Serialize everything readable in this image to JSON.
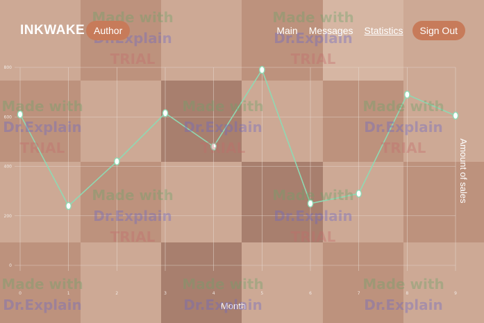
{
  "header": {
    "brand": "INKWAKE",
    "role_badge": "Author",
    "nav": [
      {
        "label": "Main"
      },
      {
        "label": "Messages"
      },
      {
        "label": "Statistics",
        "active": true
      }
    ],
    "signout_label": "Sign Out"
  },
  "watermark": [
    "Made with",
    "Dr.Explain",
    "TRIAL"
  ],
  "colors": {
    "accent": "#c77b5a",
    "line": "#8fd9b3",
    "grid": "#e8dcd4"
  },
  "chart_data": {
    "type": "line",
    "x": [
      0,
      1,
      2,
      3,
      4,
      5,
      6,
      7,
      8,
      9
    ],
    "x_tick_labels": [
      "0",
      "1",
      "2",
      "3",
      "4",
      "5",
      "6",
      "7",
      "8",
      "9"
    ],
    "series": [
      {
        "values": [
          610,
          240,
          420,
          615,
          480,
          790,
          250,
          290,
          690,
          605
        ]
      }
    ],
    "y_ticks": [
      "0",
      "200",
      "400",
      "600",
      "800"
    ],
    "xlabel": "Month",
    "ylabel": "Amount of sales",
    "ylim": [
      0,
      800
    ],
    "xlim": [
      0,
      9
    ],
    "grid": true
  }
}
